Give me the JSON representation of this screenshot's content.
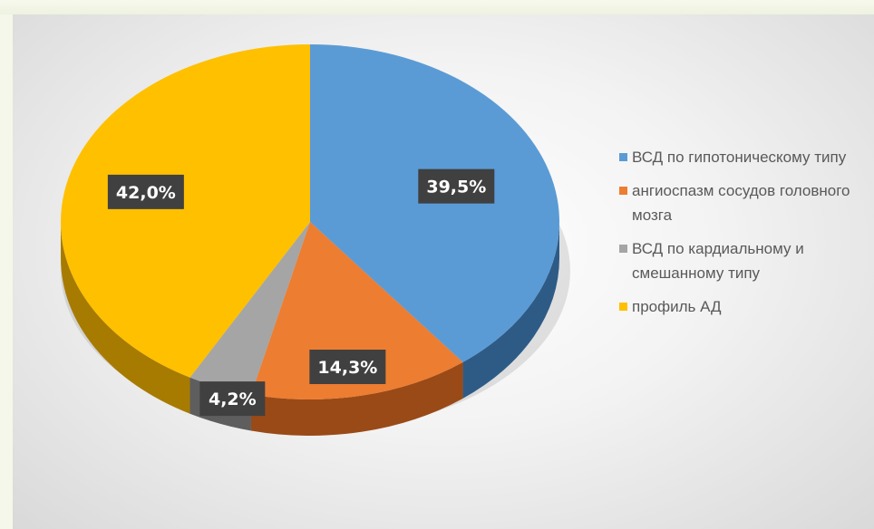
{
  "chart_data": {
    "type": "pie",
    "title": "",
    "slices": [
      {
        "label": "ВСД по гипотоническому типу",
        "value": 39.5,
        "display": "39,5%",
        "color": "#5b9bd5",
        "side": "#2e5b86"
      },
      {
        "label": "ангиоспазм сосудов головного мозга",
        "value": 14.3,
        "display": "14,3%",
        "color": "#ed7d31",
        "side": "#9a4a17"
      },
      {
        "label": "ВСД по кардиальному и смешанному типу",
        "value": 4.2,
        "display": "4,2%",
        "color": "#a5a5a5",
        "side": "#5e5e5e"
      },
      {
        "label": "профиль АД",
        "value": 42.0,
        "display": "42,0%",
        "color": "#ffc000",
        "side": "#a77b00"
      }
    ],
    "legend_position": "right",
    "data_label_style": "dark boxes with white text"
  }
}
